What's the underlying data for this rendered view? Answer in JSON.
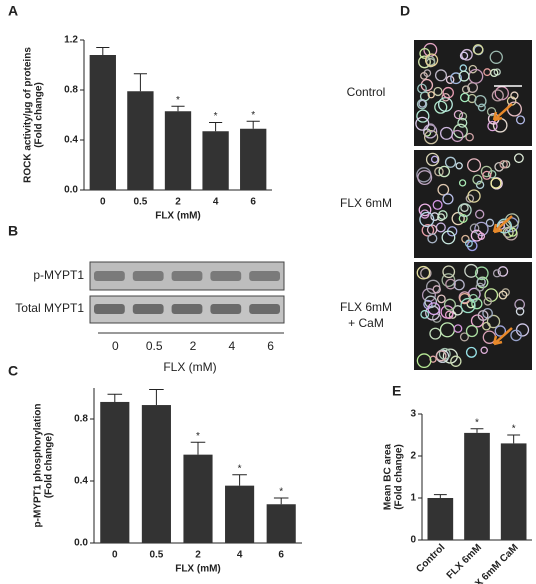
{
  "panel_letters": [
    "A",
    "B",
    "C",
    "D",
    "E"
  ],
  "chart_data": [
    {
      "type": "bar",
      "ylabel": [
        "ROCK activity/µg of proteins",
        "(Fold change)"
      ],
      "xlabel": "FLX (mM)",
      "categories": [
        "0",
        "0.5",
        "2",
        "4",
        "6"
      ],
      "values": [
        1.08,
        0.79,
        0.63,
        0.47,
        0.49
      ],
      "errors": [
        0.06,
        0.14,
        0.04,
        0.07,
        0.06
      ],
      "markers": [
        null,
        null,
        "*",
        "*",
        "*"
      ],
      "color": "#333333",
      "ylim": [
        0,
        1.2
      ],
      "yticks": [
        {
          "value": 0,
          "label": "0.0"
        },
        0.4,
        0.8,
        1.2
      ]
    },
    {
      "type": "bar",
      "ylabel": [
        "p-MYPT1 phosphorylation",
        "(Fold change)"
      ],
      "xlabel": "FLX (mM)",
      "categories": [
        "0",
        "0.5",
        "2",
        "4",
        "6"
      ],
      "values": [
        0.91,
        0.89,
        0.57,
        0.37,
        0.25
      ],
      "errors": [
        0.05,
        0.1,
        0.08,
        0.07,
        0.04
      ],
      "markers": [
        null,
        null,
        "*",
        "*",
        "*"
      ],
      "color": "#333333",
      "ylim": [
        0,
        1.0
      ],
      "yticks": [
        {
          "value": 0,
          "label": "0.0"
        },
        0.4,
        0.8
      ]
    },
    {
      "type": "bar",
      "ylabel": [
        "Mean BC area",
        "(Fold change)"
      ],
      "categories": [
        "Control",
        "FLX 6mM",
        "FLX 6mM CaM"
      ],
      "values": [
        1.0,
        2.55,
        2.3
      ],
      "errors": [
        0.08,
        0.1,
        0.2
      ],
      "markers": [
        null,
        "*",
        "*"
      ],
      "color": "#333333",
      "ylim": [
        0,
        3
      ],
      "yticks": [
        0,
        1,
        2,
        3
      ]
    }
  ],
  "blot": {
    "rows": [
      "p-MYPT1",
      "Total MYPT1"
    ],
    "lanes": [
      "0",
      "0.5",
      "2",
      "4",
      "6"
    ],
    "xlabel": "FLX (mM)"
  },
  "micrographs": {
    "labels": [
      [
        "Control"
      ],
      [
        "FLX 6mM"
      ],
      [
        "FLX 6mM",
        "+ CaM"
      ]
    ]
  }
}
